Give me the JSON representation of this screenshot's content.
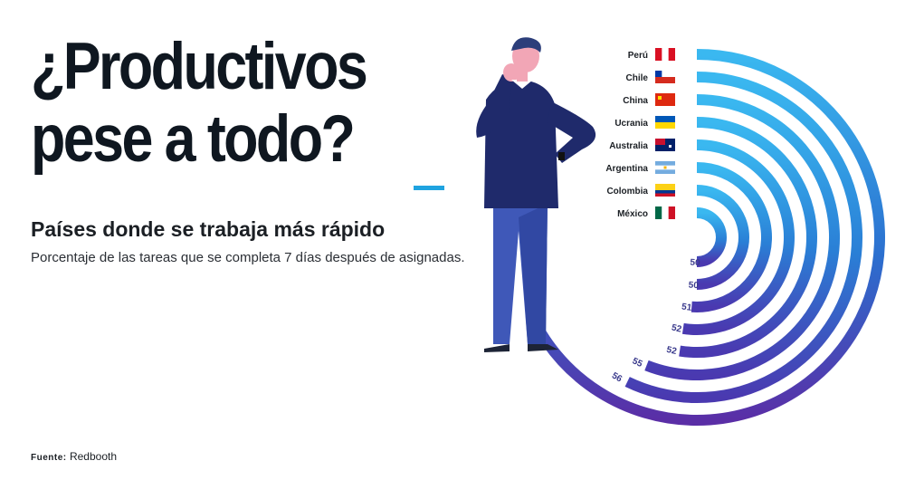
{
  "title_lines": [
    "¿Productivos",
    "pese a todo?"
  ],
  "subtitle": "Países donde se trabaja más rápido",
  "description": "Porcentaje de las tareas que se completa 7 días después de asignadas.",
  "source": {
    "label": "Fuente:",
    "value": "Redbooth"
  },
  "chart_data": {
    "type": "radial-bar",
    "title": "Países donde se trabaja más rápido",
    "subtitle": "Porcentaje de las tareas que se completa 7 días después de asignadas.",
    "unit": "%",
    "categories": [
      "Perú",
      "Chile",
      "China",
      "Ucrania",
      "Australia",
      "Argentina",
      "Colombia",
      "México"
    ],
    "values": [
      64,
      56,
      55,
      52,
      52,
      51,
      50,
      50
    ],
    "flags": [
      "peru-flag-icon",
      "chile-flag-icon",
      "china-flag-icon",
      "ukraine-flag-icon",
      "australia-flag-icon",
      "argentina-flag-icon",
      "colombia-flag-icon",
      "mexico-flag-icon"
    ],
    "colors": {
      "outer_start": "#39b6ef",
      "mid": "#2a7fd6",
      "inner_end": "#5a2ea6"
    }
  }
}
